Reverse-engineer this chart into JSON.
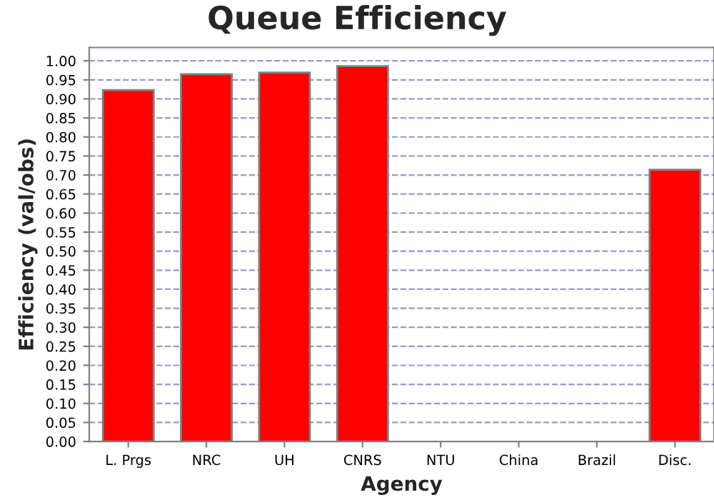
{
  "chart_data": {
    "type": "bar",
    "title": "Queue Efficiency",
    "xlabel": "Agency",
    "ylabel": "Efficiency (val/obs)",
    "categories": [
      "L. Prgs",
      "NRC",
      "UH",
      "CNRS",
      "NTU",
      "China",
      "Brazil",
      "Disc."
    ],
    "values": [
      0.923,
      0.965,
      0.969,
      0.986,
      null,
      null,
      null,
      0.714
    ],
    "color": "#ff0000",
    "ylim": [
      0,
      1.035
    ],
    "yticks": [
      {
        "value": 0,
        "label": "0.00"
      },
      {
        "value": 0.05,
        "label": "0.05"
      },
      {
        "value": 0.1,
        "label": "0.10"
      },
      {
        "value": 0.15,
        "label": "0.15"
      },
      {
        "value": 0.2,
        "label": "0.20"
      },
      {
        "value": 0.25,
        "label": "0.25"
      },
      {
        "value": 0.3,
        "label": "0.30"
      },
      {
        "value": 0.35,
        "label": "0.35"
      },
      {
        "value": 0.4,
        "label": "0.40"
      },
      {
        "value": 0.45,
        "label": "0.45"
      },
      {
        "value": 0.5,
        "label": "0.50"
      },
      {
        "value": 0.55,
        "label": "0.55"
      },
      {
        "value": 0.6,
        "label": "0.60"
      },
      {
        "value": 0.65,
        "label": "0.65"
      },
      {
        "value": 0.7,
        "label": "0.70"
      },
      {
        "value": 0.75,
        "label": "0.75"
      },
      {
        "value": 0.8,
        "label": "0.80"
      },
      {
        "value": 0.85,
        "label": "0.85"
      },
      {
        "value": 0.9,
        "label": "0.90"
      },
      {
        "value": 0.95,
        "label": "0.95"
      },
      {
        "value": 1.0,
        "label": "1.00"
      }
    ],
    "grid": "y"
  }
}
